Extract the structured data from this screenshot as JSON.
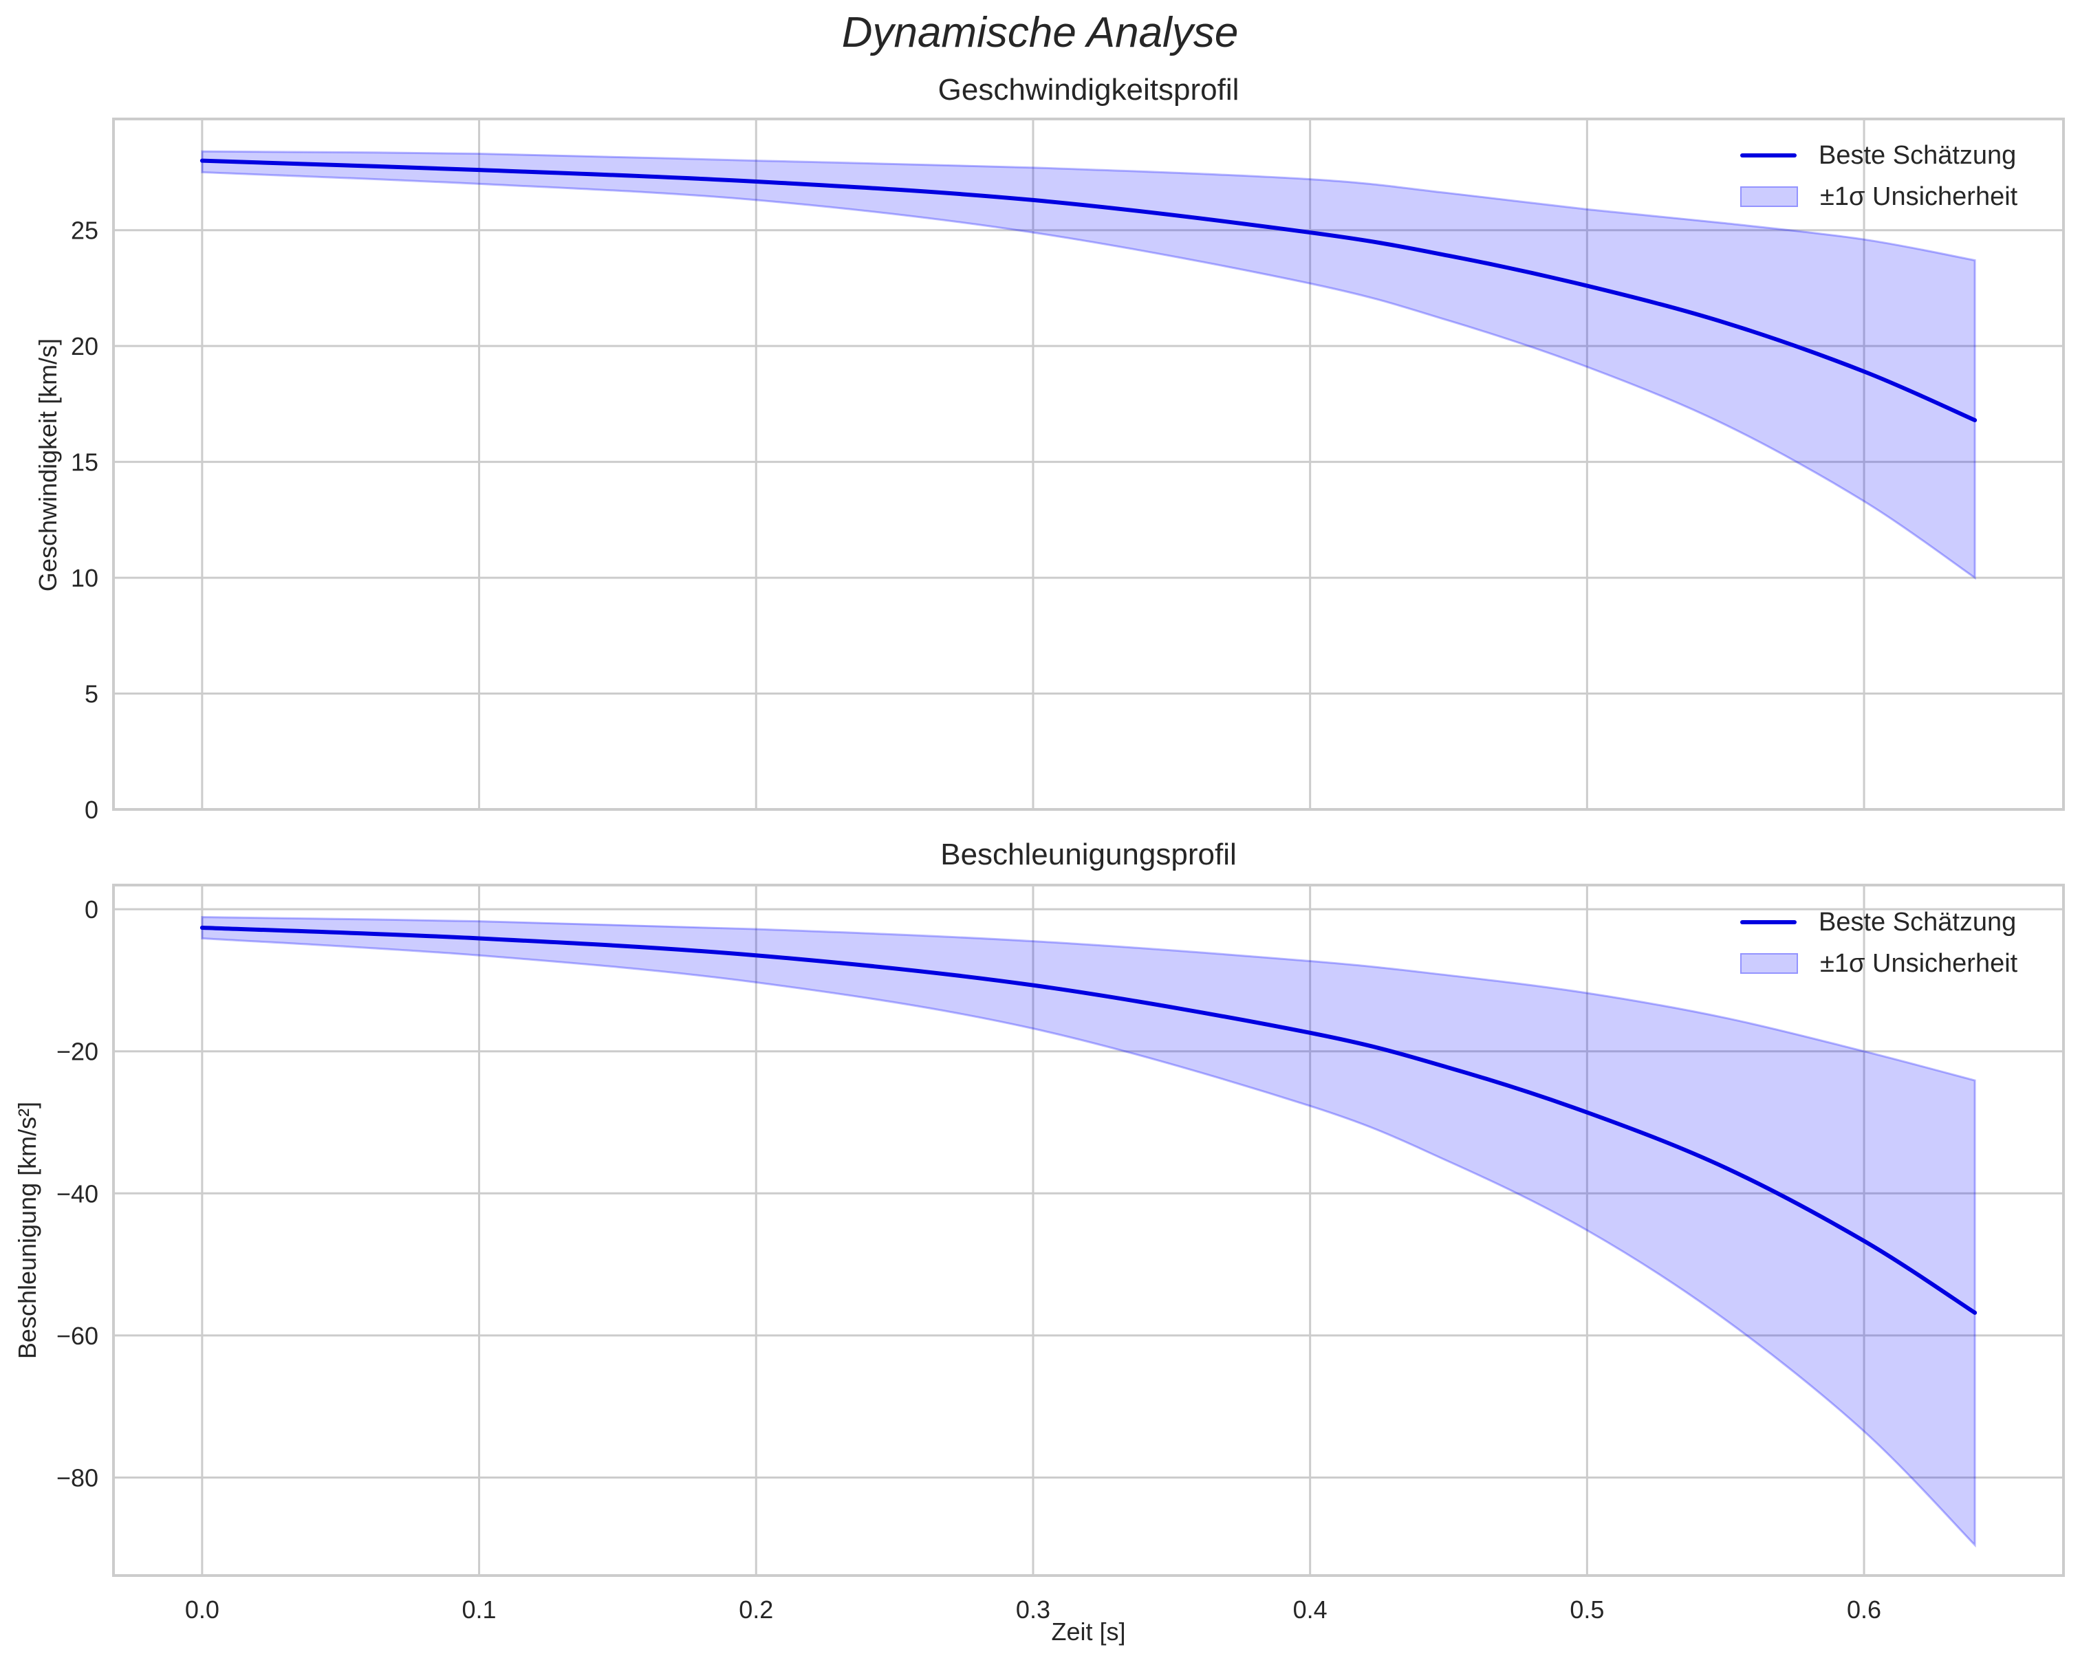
{
  "figure": {
    "suptitle": "Dynamische Analyse",
    "xlabel": "Zeit [s]"
  },
  "chart_data": [
    {
      "type": "line",
      "title": "Geschwindigkeitsprofil",
      "xlabel": "",
      "ylabel": "Geschwindigkeit [km/s]",
      "xlim": [
        -0.032,
        0.672
      ],
      "ylim": [
        0,
        29.8
      ],
      "xticks": [
        0.0,
        0.1,
        0.2,
        0.3,
        0.4,
        0.5,
        0.6
      ],
      "xtick_labels": [],
      "yticks": [
        0,
        5,
        10,
        15,
        20,
        25
      ],
      "ytick_labels": [
        "0",
        "5",
        "10",
        "15",
        "20",
        "25"
      ],
      "grid": true,
      "legend_position": "upper right",
      "legend": [
        "Beste Schätzung",
        "±1σ Unsicherheit"
      ],
      "x": [
        0.0,
        0.1,
        0.2,
        0.3,
        0.4,
        0.45,
        0.5,
        0.55,
        0.6,
        0.64
      ],
      "series": [
        {
          "name": "Beste Schätzung",
          "values": [
            28.0,
            27.6,
            27.1,
            26.3,
            24.9,
            23.9,
            22.6,
            21.0,
            18.9,
            16.8
          ]
        },
        {
          "name": "±1σ Unsicherheit (oben)",
          "values": [
            28.4,
            28.3,
            28.0,
            27.7,
            27.2,
            26.6,
            25.9,
            25.3,
            24.6,
            23.7
          ]
        },
        {
          "name": "±1σ Unsicherheit (unten)",
          "values": [
            27.5,
            27.0,
            26.3,
            24.9,
            22.7,
            21.1,
            19.1,
            16.6,
            13.3,
            10.0
          ]
        }
      ]
    },
    {
      "type": "line",
      "title": "Beschleunigungsprofil",
      "xlabel": "Zeit [s]",
      "ylabel": "Beschleunigung [km/s²]",
      "xlim": [
        -0.032,
        0.672
      ],
      "ylim": [
        -93.8,
        3.4
      ],
      "xticks": [
        0.0,
        0.1,
        0.2,
        0.3,
        0.4,
        0.5,
        0.6
      ],
      "xtick_labels": [
        "0.0",
        "0.1",
        "0.2",
        "0.3",
        "0.4",
        "0.5",
        "0.6"
      ],
      "yticks": [
        0,
        -20,
        -40,
        -60,
        -80
      ],
      "ytick_labels": [
        "0",
        "−20",
        "−40",
        "−60",
        "−80"
      ],
      "grid": true,
      "legend_position": "upper right",
      "legend": [
        "Beste Schätzung",
        "±1σ Unsicherheit"
      ],
      "x": [
        0.0,
        0.1,
        0.2,
        0.3,
        0.4,
        0.45,
        0.5,
        0.55,
        0.6,
        0.64
      ],
      "series": [
        {
          "name": "Beste Schätzung",
          "values": [
            -2.6,
            -4.1,
            -6.5,
            -10.7,
            -17.4,
            -22.3,
            -28.6,
            -36.4,
            -46.7,
            -56.8
          ]
        },
        {
          "name": "±1σ Unsicherheit (oben)",
          "values": [
            -1.1,
            -1.7,
            -2.8,
            -4.5,
            -7.3,
            -9.3,
            -11.8,
            -15.3,
            -20.0,
            -24.1
          ]
        },
        {
          "name": "±1σ Unsicherheit (unten)",
          "values": [
            -4.1,
            -6.5,
            -10.3,
            -16.8,
            -27.7,
            -35.5,
            -45.2,
            -57.8,
            -73.5,
            -89.5
          ]
        }
      ]
    }
  ],
  "style": {
    "line_color": "#0000e0",
    "band_fill": "rgba(0,0,255,0.2)",
    "band_edge": "rgba(0,0,255,0.28)",
    "grid_color": "#cccccc",
    "spine_color": "#cccccc",
    "text_color": "#262626"
  }
}
